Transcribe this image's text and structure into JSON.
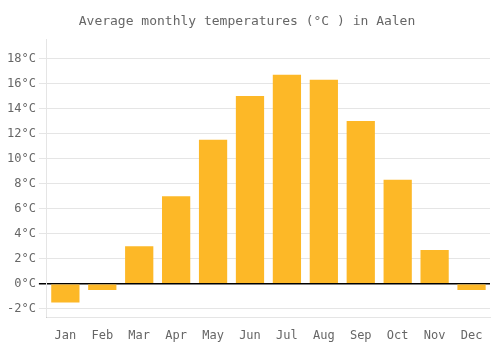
{
  "chart_data": {
    "type": "bar",
    "title": "Average monthly temperatures (°C ) in Aalen",
    "categories": [
      "Jan",
      "Feb",
      "Mar",
      "Apr",
      "May",
      "Jun",
      "Jul",
      "Aug",
      "Sep",
      "Oct",
      "Nov",
      "Dec"
    ],
    "values": [
      -1.5,
      -0.5,
      3.0,
      7.0,
      11.5,
      15.0,
      16.7,
      16.3,
      13.0,
      8.3,
      2.7,
      -0.5
    ],
    "color": "#FDB827",
    "ylim": [
      -2.7,
      19.5
    ],
    "yticks": [
      {
        "value": -2,
        "label": "-2°C"
      },
      {
        "value": 0,
        "label": "0°C"
      },
      {
        "value": 2,
        "label": "2°C"
      },
      {
        "value": 4,
        "label": "4°C"
      },
      {
        "value": 6,
        "label": "6°C"
      },
      {
        "value": 8,
        "label": "8°C"
      },
      {
        "value": 10,
        "label": "10°C"
      },
      {
        "value": 12,
        "label": "12°C"
      },
      {
        "value": 14,
        "label": "14°C"
      },
      {
        "value": 16,
        "label": "16°C"
      },
      {
        "value": 18,
        "label": "18°C"
      }
    ],
    "grid": true
  }
}
